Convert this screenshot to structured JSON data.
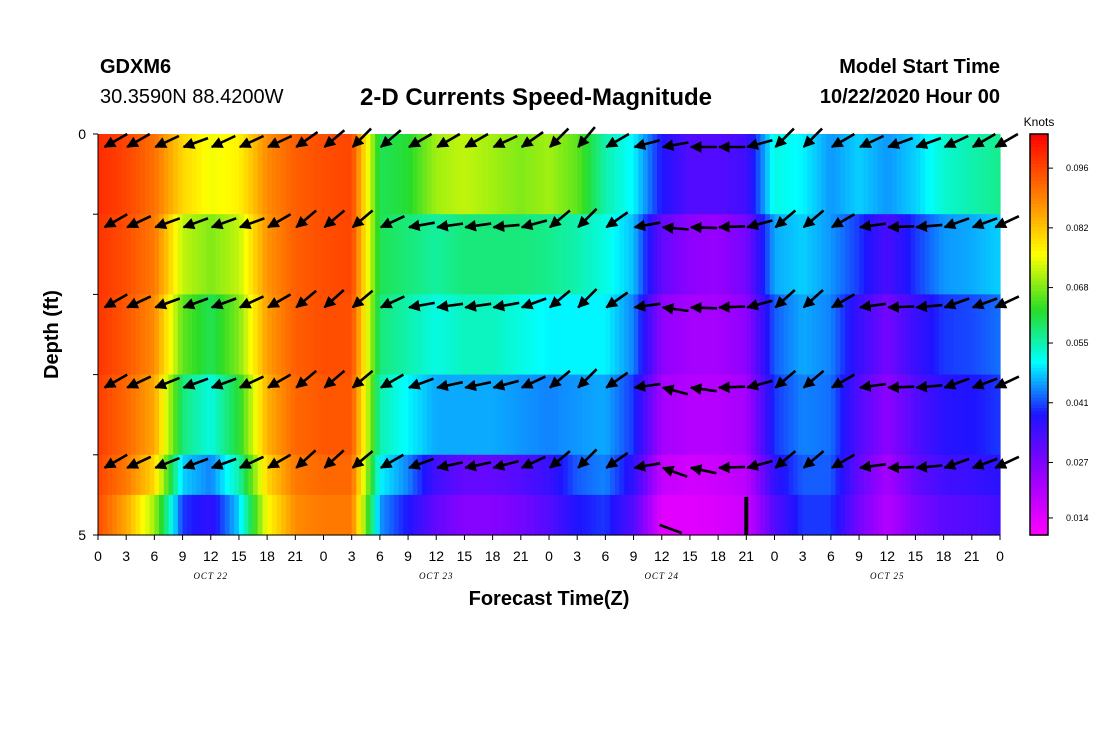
{
  "header": {
    "station_id": "GDXM6",
    "location": "30.3590N 88.4200W",
    "title": "2-D Currents Speed-Magnitude",
    "model_start_label": "Model Start Time",
    "model_start_value": "10/22/2020 Hour 00"
  },
  "chart_data": {
    "type": "heatmap",
    "title": "2-D Currents Speed-Magnitude",
    "xlabel": "Forecast Time(Z)",
    "ylabel": "Depth (ft)",
    "x_tick_labels": [
      "0",
      "3",
      "6",
      "9",
      "12",
      "15",
      "18",
      "21",
      "0",
      "3",
      "6",
      "9",
      "12",
      "15",
      "18",
      "21",
      "0",
      "3",
      "6",
      "9",
      "12",
      "15",
      "18",
      "21",
      "0",
      "3",
      "6",
      "9",
      "12",
      "15",
      "18",
      "21",
      "0"
    ],
    "day_labels": [
      "OCT 22",
      "OCT 23",
      "OCT 24",
      "OCT 25"
    ],
    "y_tick_labels": [
      "0",
      "5"
    ],
    "depth_range_ft": [
      0,
      5
    ],
    "forecast_hours_range": [
      0,
      96
    ],
    "depth_levels_ft": [
      0,
      1,
      2,
      3,
      4,
      5
    ],
    "hours": [
      0,
      3,
      6,
      9,
      12,
      15,
      18,
      21,
      24,
      27,
      30,
      33,
      36,
      39,
      42,
      45,
      48,
      51,
      54,
      57,
      60,
      63,
      66,
      69,
      72,
      75,
      78,
      81,
      84,
      87,
      90,
      93,
      96
    ],
    "speed_knots": [
      [
        0.099,
        0.096,
        0.091,
        0.08,
        0.075,
        0.077,
        0.088,
        0.093,
        0.095,
        0.096,
        0.06,
        0.062,
        0.07,
        0.072,
        0.07,
        0.068,
        0.07,
        0.066,
        0.055,
        0.05,
        0.038,
        0.032,
        0.032,
        0.034,
        0.052,
        0.05,
        0.045,
        0.048,
        0.045,
        0.048,
        0.053,
        0.055,
        0.057
      ],
      [
        0.098,
        0.095,
        0.09,
        0.072,
        0.068,
        0.072,
        0.087,
        0.093,
        0.095,
        0.096,
        0.06,
        0.058,
        0.056,
        0.058,
        0.058,
        0.058,
        0.057,
        0.055,
        0.052,
        0.047,
        0.03,
        0.025,
        0.024,
        0.028,
        0.046,
        0.048,
        0.045,
        0.04,
        0.033,
        0.04,
        0.045,
        0.046,
        0.048
      ],
      [
        0.098,
        0.094,
        0.088,
        0.066,
        0.06,
        0.068,
        0.086,
        0.093,
        0.095,
        0.095,
        0.058,
        0.055,
        0.052,
        0.054,
        0.054,
        0.052,
        0.05,
        0.05,
        0.05,
        0.044,
        0.025,
        0.022,
        0.022,
        0.025,
        0.042,
        0.046,
        0.044,
        0.035,
        0.028,
        0.035,
        0.04,
        0.041,
        0.043
      ],
      [
        0.097,
        0.092,
        0.085,
        0.058,
        0.052,
        0.062,
        0.084,
        0.092,
        0.094,
        0.094,
        0.055,
        0.05,
        0.046,
        0.046,
        0.046,
        0.045,
        0.044,
        0.045,
        0.046,
        0.04,
        0.022,
        0.02,
        0.02,
        0.022,
        0.04,
        0.044,
        0.043,
        0.032,
        0.025,
        0.032,
        0.037,
        0.038,
        0.04
      ],
      [
        0.096,
        0.09,
        0.08,
        0.048,
        0.044,
        0.055,
        0.08,
        0.09,
        0.092,
        0.092,
        0.05,
        0.044,
        0.034,
        0.03,
        0.03,
        0.032,
        0.035,
        0.042,
        0.044,
        0.036,
        0.018,
        0.016,
        0.017,
        0.019,
        0.036,
        0.042,
        0.042,
        0.03,
        0.022,
        0.03,
        0.034,
        0.035,
        0.037
      ],
      [
        0.095,
        0.085,
        0.07,
        0.04,
        0.036,
        0.048,
        0.076,
        0.088,
        0.09,
        0.09,
        0.045,
        0.038,
        0.03,
        0.026,
        0.026,
        0.028,
        0.032,
        0.038,
        0.04,
        0.032,
        0.014,
        0.014,
        0.015,
        0.017,
        0.032,
        0.04,
        0.04,
        0.028,
        0.02,
        0.027,
        0.031,
        0.032,
        0.034
      ]
    ],
    "colorbar": {
      "label": "Knots",
      "range": [
        0.01,
        0.104
      ],
      "ticks": [
        "0.096",
        "0.082",
        "0.068",
        "0.055",
        "0.041",
        "0.027",
        "0.014"
      ],
      "tick_values": [
        0.096,
        0.082,
        0.068,
        0.055,
        0.041,
        0.027,
        0.014
      ]
    },
    "vectors": {
      "hours": [
        0,
        3,
        6,
        9,
        12,
        15,
        18,
        21,
        24,
        27,
        30,
        33,
        36,
        39,
        42,
        45,
        48,
        51,
        54,
        57,
        60,
        63,
        66,
        69,
        72,
        75,
        78,
        81,
        84,
        87,
        90,
        93,
        96
      ],
      "rows_depth_ft": [
        0,
        1,
        2,
        3,
        4
      ],
      "direction_deg": [
        [
          240,
          240,
          245,
          250,
          245,
          245,
          245,
          235,
          230,
          225,
          230,
          240,
          240,
          240,
          245,
          235,
          225,
          220,
          240,
          255,
          260,
          270,
          270,
          255,
          225,
          225,
          240,
          245,
          250,
          250,
          245,
          240,
          240
        ],
        [
          240,
          245,
          250,
          250,
          250,
          250,
          240,
          230,
          230,
          230,
          245,
          260,
          262,
          262,
          265,
          255,
          230,
          225,
          235,
          260,
          275,
          272,
          268,
          255,
          230,
          230,
          240,
          262,
          268,
          265,
          250,
          250,
          245
        ],
        [
          240,
          245,
          250,
          250,
          250,
          245,
          240,
          230,
          228,
          230,
          245,
          260,
          262,
          262,
          260,
          250,
          230,
          225,
          235,
          262,
          278,
          272,
          268,
          255,
          228,
          228,
          240,
          262,
          268,
          265,
          250,
          250,
          245
        ],
        [
          240,
          245,
          248,
          250,
          250,
          245,
          240,
          230,
          230,
          230,
          240,
          250,
          258,
          258,
          255,
          245,
          230,
          225,
          235,
          262,
          285,
          278,
          268,
          255,
          230,
          230,
          240,
          262,
          268,
          265,
          250,
          250,
          245
        ],
        [
          240,
          245,
          248,
          250,
          250,
          245,
          240,
          228,
          228,
          230,
          240,
          250,
          258,
          258,
          255,
          245,
          230,
          225,
          235,
          260,
          290,
          282,
          268,
          255,
          230,
          230,
          240,
          262,
          268,
          265,
          250,
          250,
          245
        ]
      ],
      "bottom_vectors": [
        {
          "hour": 60,
          "depth_ft": 5,
          "direction_deg": 300
        }
      ]
    },
    "marker_hour": 69,
    "grid": false,
    "legend": "colorbar right"
  }
}
